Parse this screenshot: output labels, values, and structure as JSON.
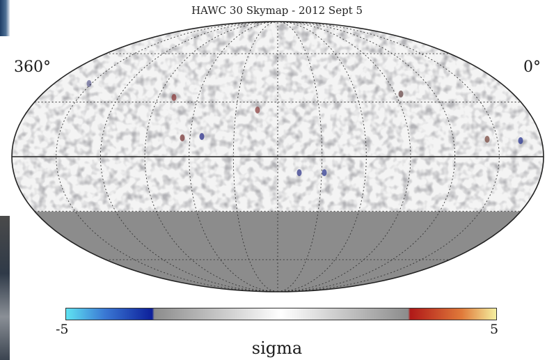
{
  "chart_data": {
    "type": "heatmap",
    "projection": "mollweide",
    "title": "HAWC 30 Skymap - 2012 Sept 5",
    "ra_labels": {
      "left": "360°",
      "right": "0°"
    },
    "colorbar": {
      "label": "sigma",
      "min": -5,
      "max": 5,
      "min_label": "-5",
      "max_label": "5",
      "colors": [
        "#5fe3f2",
        "#3a78d4",
        "#0d1f9a",
        "#8c8c8c",
        "#ffffff",
        "#8c8c8c",
        "#b01818",
        "#e07a3a",
        "#f5f0a0"
      ]
    },
    "grid": true,
    "unobserved_region_color": "#8c8c8c"
  }
}
